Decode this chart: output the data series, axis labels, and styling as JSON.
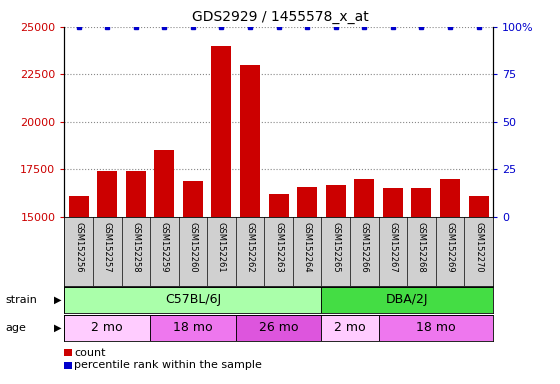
{
  "title": "GDS2929 / 1455578_x_at",
  "samples": [
    "GSM152256",
    "GSM152257",
    "GSM152258",
    "GSM152259",
    "GSM152260",
    "GSM152261",
    "GSM152262",
    "GSM152263",
    "GSM152264",
    "GSM152265",
    "GSM152266",
    "GSM152267",
    "GSM152268",
    "GSM152269",
    "GSM152270"
  ],
  "counts": [
    16100,
    17400,
    17400,
    18500,
    16900,
    24000,
    23000,
    16200,
    16600,
    16700,
    17000,
    16500,
    16500,
    17000,
    16100
  ],
  "percentile_ranks": [
    100,
    100,
    100,
    100,
    100,
    100,
    100,
    100,
    100,
    100,
    100,
    100,
    100,
    100,
    100
  ],
  "bar_color": "#cc0000",
  "dot_color": "#0000cc",
  "ylim_left": [
    15000,
    25000
  ],
  "ylim_right": [
    0,
    100
  ],
  "yticks_left": [
    15000,
    17500,
    20000,
    22500,
    25000
  ],
  "yticks_right": [
    0,
    25,
    50,
    75,
    100
  ],
  "strain_groups": [
    {
      "label": "C57BL/6J",
      "start": 0,
      "end": 9,
      "color": "#aaffaa"
    },
    {
      "label": "DBA/2J",
      "start": 9,
      "end": 15,
      "color": "#44dd44"
    }
  ],
  "age_groups": [
    {
      "label": "2 mo",
      "start": 0,
      "end": 3,
      "color": "#ffccff"
    },
    {
      "label": "18 mo",
      "start": 3,
      "end": 6,
      "color": "#ee77ee"
    },
    {
      "label": "26 mo",
      "start": 6,
      "end": 9,
      "color": "#dd55dd"
    },
    {
      "label": "2 mo",
      "start": 9,
      "end": 11,
      "color": "#ffccff"
    },
    {
      "label": "18 mo",
      "start": 11,
      "end": 15,
      "color": "#ee77ee"
    }
  ],
  "legend_count_label": "count",
  "legend_pct_label": "percentile rank within the sample",
  "background_color": "#ffffff",
  "grid_color": "#888888",
  "left_tick_color": "#cc0000",
  "right_tick_color": "#0000cc",
  "xlabel_area_color": "#d0d0d0",
  "title_fontsize": 10,
  "tick_fontsize": 8,
  "label_fontsize": 8,
  "sample_fontsize": 6,
  "strain_fontsize": 9,
  "age_fontsize": 9
}
